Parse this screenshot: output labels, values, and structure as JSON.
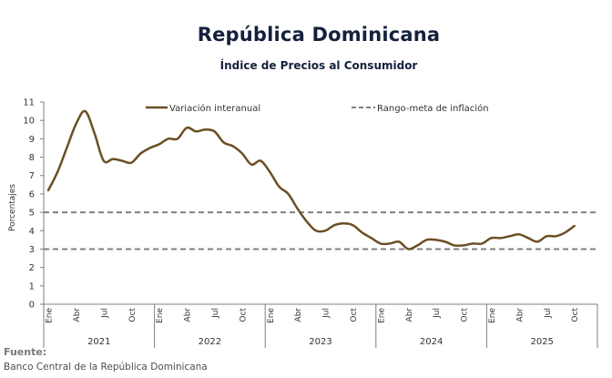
{
  "header": {
    "title": "República Dominicana",
    "subtitle": "Índice de Precios al Consumidor"
  },
  "footer": {
    "source_label": "Fuente:",
    "source_text": "Banco Central de la República Dominicana"
  },
  "colors": {
    "series": "#6b4f24",
    "target": "#808080",
    "axis": "#7f7f7f",
    "title": "#14213d"
  },
  "chart_data": {
    "type": "line",
    "title": "República Dominicana",
    "subtitle": "Índice de Precios al Consumidor",
    "xlabel": "",
    "ylabel": "Porcentajes",
    "ylim": [
      0,
      11
    ],
    "yticks": [
      0,
      1,
      2,
      3,
      4,
      5,
      6,
      7,
      8,
      9,
      10,
      11
    ],
    "grid": false,
    "legend_position": "top",
    "years": [
      "2021",
      "2022",
      "2023",
      "2024",
      "2025"
    ],
    "month_tick_labels": [
      "Ene",
      "Abr",
      "Jul",
      "Oct"
    ],
    "series": [
      {
        "name": "Variación interanual",
        "style": "solid",
        "start": "2021-01",
        "end": "2025-10",
        "values": [
          6.2,
          7.2,
          8.5,
          9.8,
          10.5,
          9.3,
          7.8,
          7.9,
          7.8,
          7.7,
          8.2,
          8.5,
          8.7,
          9.0,
          9.0,
          9.6,
          9.4,
          9.5,
          9.4,
          8.8,
          8.6,
          8.2,
          7.6,
          7.8,
          7.2,
          6.4,
          6.0,
          5.2,
          4.5,
          4.0,
          4.0,
          4.3,
          4.4,
          4.3,
          3.9,
          3.6,
          3.3,
          3.3,
          3.4,
          3.0,
          3.2,
          3.5,
          3.5,
          3.4,
          3.2,
          3.2,
          3.3,
          3.3,
          3.6,
          3.6,
          3.7,
          3.8,
          3.6,
          3.4,
          3.7,
          3.7,
          3.9,
          4.26
        ]
      },
      {
        "name": "Rango-meta de inflación",
        "style": "dashed",
        "band": [
          3,
          5
        ]
      }
    ]
  }
}
